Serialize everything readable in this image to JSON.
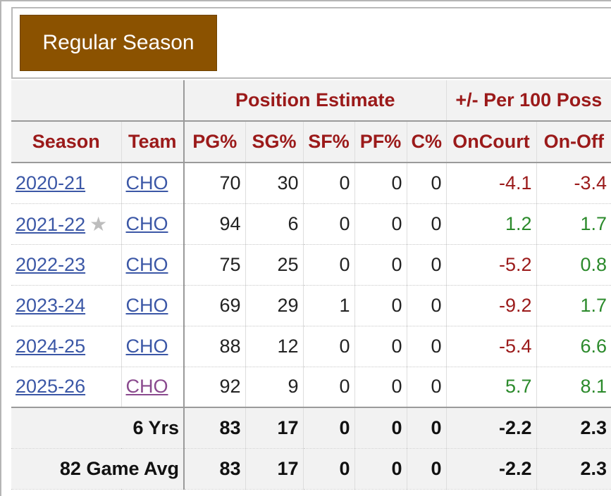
{
  "header": {
    "button_label": "Regular Season"
  },
  "over_header": {
    "position_estimate": "Position Estimate",
    "plus_minus": "+/- Per 100 Poss"
  },
  "columns": [
    "Season",
    "Team",
    "PG%",
    "SG%",
    "SF%",
    "PF%",
    "C%",
    "OnCourt",
    "On-Off"
  ],
  "rows": [
    {
      "season": "2020-21",
      "team": "CHO",
      "pg": "70",
      "sg": "30",
      "sf": "0",
      "pf": "0",
      "c": "0",
      "oncourt": "-4.1",
      "onoff": "-3.4"
    },
    {
      "season": "2021-22",
      "team": "CHO",
      "pg": "94",
      "sg": "6",
      "sf": "0",
      "pf": "0",
      "c": "0",
      "oncourt": "1.2",
      "onoff": "1.7",
      "star": "★"
    },
    {
      "season": "2022-23",
      "team": "CHO",
      "pg": "75",
      "sg": "25",
      "sf": "0",
      "pf": "0",
      "c": "0",
      "oncourt": "-5.2",
      "onoff": "0.8"
    },
    {
      "season": "2023-24",
      "team": "CHO",
      "pg": "69",
      "sg": "29",
      "sf": "1",
      "pf": "0",
      "c": "0",
      "oncourt": "-9.2",
      "onoff": "1.7"
    },
    {
      "season": "2024-25",
      "team": "CHO",
      "pg": "88",
      "sg": "12",
      "sf": "0",
      "pf": "0",
      "c": "0",
      "oncourt": "-5.4",
      "onoff": "6.6"
    },
    {
      "season": "2025-26",
      "team": "CHO",
      "pg": "92",
      "sg": "9",
      "sf": "0",
      "pf": "0",
      "c": "0",
      "oncourt": "5.7",
      "onoff": "8.1"
    }
  ],
  "totals": [
    {
      "label": "6 Yrs",
      "pg": "83",
      "sg": "17",
      "sf": "0",
      "pf": "0",
      "c": "0",
      "oncourt": "-2.2",
      "onoff": "2.3"
    },
    {
      "label": "82 Game Avg",
      "pg": "83",
      "sg": "17",
      "sf": "0",
      "pf": "0",
      "c": "0",
      "oncourt": "-2.2",
      "onoff": "2.3"
    }
  ],
  "colors": {
    "button_bg": "#8b5200",
    "header_text": "#9b1a1a",
    "link": "#3b57a6",
    "visited_link": "#8a4a8e",
    "negative": "#9b1a1a",
    "positive": "#2b8a2b"
  }
}
